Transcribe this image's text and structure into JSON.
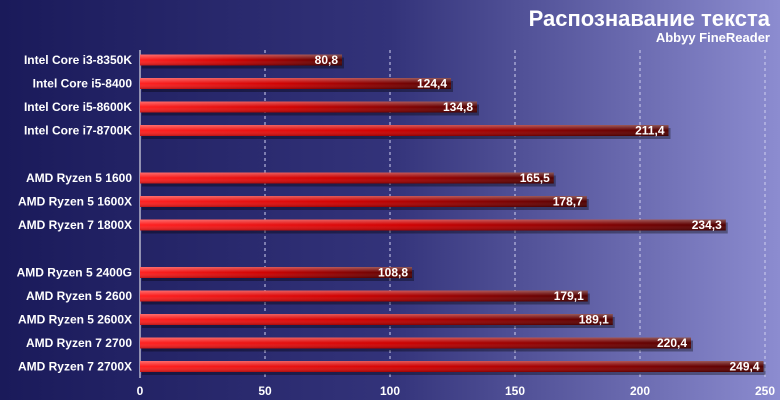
{
  "chart_data": {
    "type": "bar",
    "orientation": "horizontal",
    "title": "Распознавание текста",
    "subtitle": "Abbyy FineReader",
    "xlabel": "",
    "ylabel": "",
    "xlim": [
      0,
      250
    ],
    "xticks": [
      "0",
      "50",
      "100",
      "150",
      "200",
      "250"
    ],
    "grid": true,
    "legend": "none",
    "groups": [
      {
        "categories": [
          "Intel Core i3-8350K",
          "Intel Core i5-8400",
          "Intel Core i5-8600K",
          "Intel Core i7-8700K"
        ],
        "values": [
          80.8,
          124.4,
          134.8,
          211.4
        ],
        "value_labels": [
          "80,8",
          "124,4",
          "134,8",
          "211,4"
        ]
      },
      {
        "categories": [
          "AMD Ryzen 5 1600",
          "AMD Ryzen 5 1600X",
          "AMD Ryzen 7 1800X"
        ],
        "values": [
          165.5,
          178.7,
          234.3
        ],
        "value_labels": [
          "165,5",
          "178,7",
          "234,3"
        ]
      },
      {
        "categories": [
          "AMD Ryzen 5 2400G",
          "AMD Ryzen 5 2600",
          "AMD Ryzen 5 2600X",
          "AMD Ryzen 7 2700",
          "AMD Ryzen 7 2700X"
        ],
        "values": [
          108.8,
          179.1,
          189.1,
          220.4,
          249.4
        ],
        "value_labels": [
          "108,8",
          "179,1",
          "189,1",
          "220,4",
          "249,4"
        ]
      }
    ],
    "colors": {
      "background_left": "#1a1a5a",
      "background_right": "#8080c8",
      "bar_light": "#ff1a1a",
      "bar_dark": "#5a0000",
      "text": "#ffffff",
      "grid": "#c0c0e0"
    }
  }
}
